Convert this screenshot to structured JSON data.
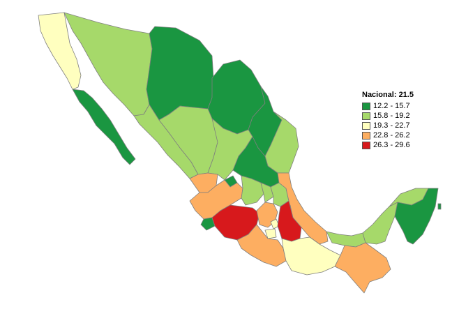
{
  "legend": {
    "title": "Nacional: 21.5",
    "items": [
      {
        "label": "12.2 - 15.7",
        "color": "#1a9641"
      },
      {
        "label": "15.8 - 19.2",
        "color": "#a6d96a"
      },
      {
        "label": "19.3 - 22.7",
        "color": "#ffffbf"
      },
      {
        "label": "22.8 - 26.2",
        "color": "#fdae61"
      },
      {
        "label": "26.3 - 29.6",
        "color": "#d7191c"
      }
    ]
  }
}
